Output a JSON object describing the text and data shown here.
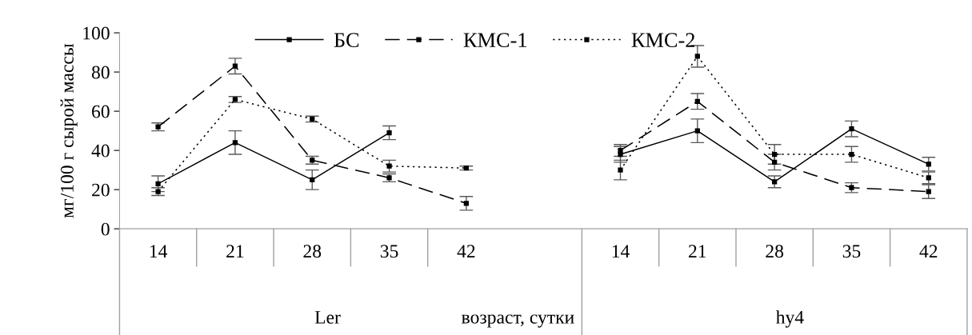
{
  "chart_data": {
    "type": "line",
    "ylabel": "мг/100 г сырой массы",
    "xlabel": "возраст, сутки",
    "categories": [
      "14",
      "21",
      "28",
      "35",
      "42",
      null,
      "14",
      "21",
      "28",
      "35",
      "42"
    ],
    "annotations": [
      "Ler",
      "hy4"
    ],
    "ylim": [
      0,
      100
    ],
    "yticks": [
      0,
      20,
      40,
      60,
      80,
      100
    ],
    "grid": false,
    "legend": "top",
    "marker": "square",
    "series": [
      {
        "name": "БС",
        "color": "#000000",
        "line_style": "solid",
        "values": [
          23,
          44,
          25,
          49,
          null,
          null,
          38,
          50,
          24,
          51,
          33
        ],
        "errors": [
          4,
          6,
          5,
          3.5,
          null,
          null,
          4,
          6,
          3,
          4,
          3.5
        ]
      },
      {
        "name": "КМС-1",
        "color": "#000000",
        "line_style": "dashed",
        "values": [
          52,
          83,
          35,
          26,
          13,
          null,
          40,
          65,
          34,
          21,
          19
        ],
        "errors": [
          2,
          4,
          2,
          2,
          3.5,
          null,
          3,
          4,
          4,
          2.5,
          3.5
        ]
      },
      {
        "name": "КМС-2",
        "color": "#000000",
        "line_style": "dotted",
        "values": [
          19,
          66,
          56,
          32,
          31,
          null,
          30,
          88,
          38,
          38,
          26
        ],
        "errors": [
          2,
          1.5,
          1.5,
          3,
          1,
          null,
          5,
          5.5,
          5,
          4,
          3
        ]
      }
    ]
  }
}
